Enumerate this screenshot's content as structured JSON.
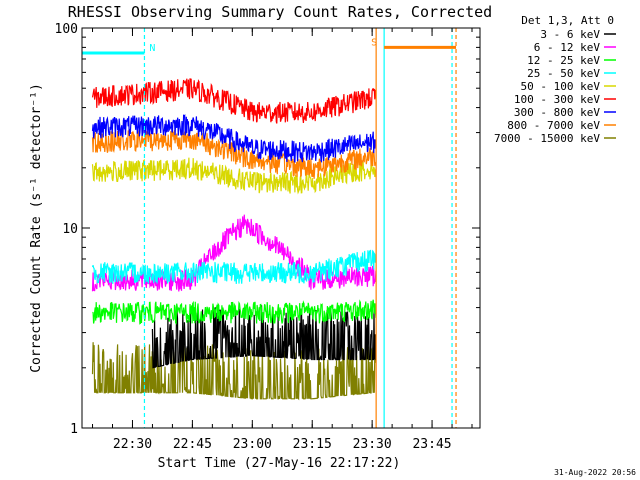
{
  "chart_data": {
    "type": "line",
    "title": "RHESSI Observing Summary Count Rates, Corrected",
    "xlabel": "Start Time (27-May-16 22:17:22)",
    "ylabel": "Corrected Count Rate (s⁻¹ detector⁻¹)",
    "yscale": "log",
    "ylim": [
      1,
      100
    ],
    "xlim": [
      "22:17:22",
      "23:57:00"
    ],
    "x_ticks": [
      "22:30",
      "22:45",
      "23:00",
      "23:15",
      "23:30",
      "23:45"
    ],
    "y_ticks": [
      "1",
      "10",
      "100"
    ],
    "legend_title": "Det 1,3, Att 0",
    "legend_position": "right",
    "footer": "31-Aug-2022 20:56",
    "series": [
      {
        "name": "3 - 6 keV",
        "color": "#000000",
        "mean": 2.2,
        "points": [
          [
            "22:35",
            2.0
          ],
          [
            "22:45",
            2.2
          ],
          [
            "23:00",
            2.3
          ],
          [
            "23:15",
            2.2
          ],
          [
            "23:30",
            2.2
          ]
        ]
      },
      {
        "name": "6 - 12 keV",
        "color": "#ff00ff",
        "mean": 5.5,
        "points": [
          [
            "22:20",
            5.5
          ],
          [
            "22:45",
            5.5
          ],
          [
            "22:58",
            10.5
          ],
          [
            "23:15",
            5.5
          ],
          [
            "23:30",
            5.8
          ]
        ]
      },
      {
        "name": "12 - 25 keV",
        "color": "#00ff00",
        "mean": 3.8,
        "points": [
          [
            "22:20",
            3.8
          ],
          [
            "22:45",
            3.8
          ],
          [
            "23:00",
            3.8
          ],
          [
            "23:15",
            3.8
          ],
          [
            "23:30",
            3.9
          ]
        ]
      },
      {
        "name": "25 - 50 keV",
        "color": "#00ffff",
        "mean": 6.0,
        "points": [
          [
            "22:20",
            6.0
          ],
          [
            "22:45",
            6.0
          ],
          [
            "23:00",
            6.0
          ],
          [
            "23:15",
            6.0
          ],
          [
            "23:30",
            7.0
          ]
        ]
      },
      {
        "name": "50 - 100 keV",
        "color": "#d8d800",
        "mean": 20,
        "points": [
          [
            "22:20",
            19
          ],
          [
            "22:45",
            20
          ],
          [
            "23:00",
            17
          ],
          [
            "23:15",
            17
          ],
          [
            "23:30",
            20
          ]
        ]
      },
      {
        "name": "100 - 300 keV",
        "color": "#ff0000",
        "mean": 42,
        "points": [
          [
            "22:20",
            45
          ],
          [
            "22:45",
            50
          ],
          [
            "23:00",
            38
          ],
          [
            "23:15",
            38
          ],
          [
            "23:30",
            45
          ]
        ]
      },
      {
        "name": "300 - 800 keV",
        "color": "#0000ff",
        "mean": 30,
        "points": [
          [
            "22:20",
            32
          ],
          [
            "22:45",
            33
          ],
          [
            "23:00",
            25
          ],
          [
            "23:15",
            24
          ],
          [
            "23:30",
            27
          ]
        ]
      },
      {
        "name": "800 - 7000 keV",
        "color": "#ff8000",
        "mean": 25,
        "points": [
          [
            "22:20",
            27
          ],
          [
            "22:45",
            28
          ],
          [
            "23:00",
            22
          ],
          [
            "23:15",
            20
          ],
          [
            "23:30",
            23
          ]
        ]
      },
      {
        "name": "7000 - 15000 keV",
        "color": "#808000",
        "mean": 1.4,
        "points": [
          [
            "22:20",
            1.5
          ],
          [
            "22:45",
            1.5
          ],
          [
            "23:00",
            1.4
          ],
          [
            "23:15",
            1.4
          ],
          [
            "23:30",
            1.5
          ]
        ]
      }
    ],
    "annotations": [
      {
        "label": "N",
        "color": "#00ffff",
        "start": "22:17:22",
        "end": "22:33:00",
        "y": 75
      },
      {
        "label": "S",
        "color": "#ff8000",
        "start": "23:33:00",
        "end": "23:51:00",
        "y": 80
      }
    ],
    "vertical_markers": [
      {
        "color": "#00ffff",
        "time": "22:33:00",
        "style": "dashed"
      },
      {
        "color": "#ff8000",
        "time": "23:31:00",
        "style": "solid"
      },
      {
        "color": "#00ffff",
        "time": "23:33:00",
        "style": "solid"
      },
      {
        "color": "#00ffff",
        "time": "23:50:00",
        "style": "dashed"
      },
      {
        "color": "#ff8000",
        "time": "23:51:00",
        "style": "dashed"
      }
    ],
    "data_end": "23:31:00"
  }
}
